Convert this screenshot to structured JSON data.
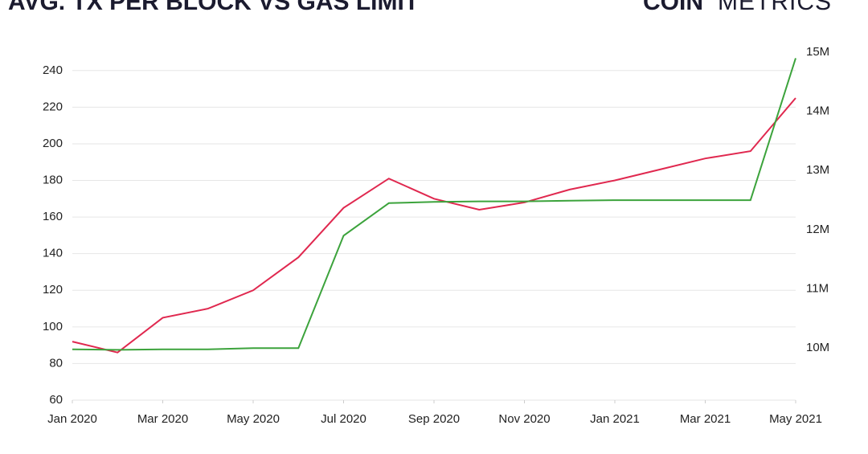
{
  "chart_data": {
    "type": "line",
    "title": "AVG. TX PER BLOCK VS GAS LIMIT",
    "logo_bold": "COIN",
    "logo_light": "METRICS",
    "x": [
      "2020-01",
      "2020-02",
      "2020-03",
      "2020-04",
      "2020-05",
      "2020-06",
      "2020-07",
      "2020-08",
      "2020-09",
      "2020-10",
      "2020-11",
      "2020-12",
      "2021-01",
      "2021-02",
      "2021-03",
      "2021-04",
      "2021-05"
    ],
    "series": [
      {
        "name": "Avg. Tx per Block",
        "color": "#e0284f",
        "axis": "y",
        "values": [
          92,
          86,
          105,
          110,
          120,
          138,
          165,
          181,
          170,
          164,
          168,
          175,
          180,
          186,
          192,
          196,
          225
        ]
      },
      {
        "name": "Gas Limit",
        "color": "#3ca33c",
        "axis": "y2",
        "values": [
          9980000,
          9970000,
          9980000,
          9980000,
          10000000,
          10000000,
          11900000,
          12450000,
          12470000,
          12480000,
          12480000,
          12490000,
          12500000,
          12500000,
          12500000,
          12500000,
          14900000
        ]
      }
    ],
    "xlim": [
      "2020-01",
      "2021-05"
    ],
    "xticks": [
      {
        "value": "2020-01",
        "label": "Jan 2020"
      },
      {
        "value": "2020-03",
        "label": "Mar 2020"
      },
      {
        "value": "2020-05",
        "label": "May 2020"
      },
      {
        "value": "2020-07",
        "label": "Jul 2020"
      },
      {
        "value": "2020-09",
        "label": "Sep 2020"
      },
      {
        "value": "2020-11",
        "label": "Nov 2020"
      },
      {
        "value": "2021-01",
        "label": "Jan 2021"
      },
      {
        "value": "2021-03",
        "label": "Mar 2021"
      },
      {
        "value": "2021-05",
        "label": "May 2021"
      }
    ],
    "ylim": [
      60,
      250
    ],
    "yticks": [
      60,
      80,
      100,
      120,
      140,
      160,
      180,
      200,
      220,
      240
    ],
    "y2lim": [
      9120000,
      15000000
    ],
    "y2ticks": [
      {
        "value": 10000000,
        "label": "10M"
      },
      {
        "value": 11000000,
        "label": "11M"
      },
      {
        "value": 12000000,
        "label": "12M"
      },
      {
        "value": 13000000,
        "label": "13M"
      },
      {
        "value": 14000000,
        "label": "14M"
      },
      {
        "value": 15000000,
        "label": "15M"
      }
    ],
    "grid": true
  }
}
